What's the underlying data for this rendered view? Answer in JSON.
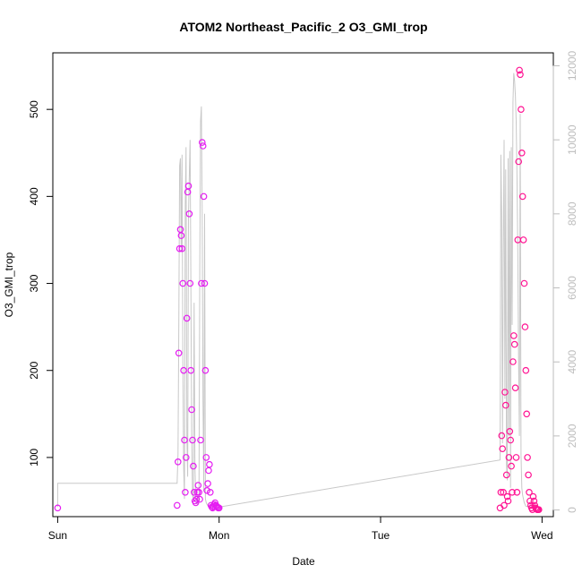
{
  "chart_data": {
    "type": "scatter",
    "title": "ATOM2 Northeast_Pacific_2 O3_GMI_trop",
    "xlabel": "Date",
    "ylabel": "O3_GMI_trop",
    "x_ticks": [
      "Sun",
      "Mon",
      "Tue",
      "Wed"
    ],
    "x_domain_days": [
      -0.03,
      3.07
    ],
    "ylim": [
      32,
      565
    ],
    "y_ticks": [
      100,
      200,
      300,
      400,
      500
    ],
    "y2lim": [
      -180,
      12350
    ],
    "y2_ticks": [
      0,
      2000,
      4000,
      6000,
      8000,
      10000,
      12000
    ],
    "grid": false,
    "legend": "none",
    "colors": {
      "flight1_points": "#e51cf2",
      "flight2_points": "#ff1493",
      "secondary_line": "#c8c8c8"
    },
    "series": [
      {
        "axis": "left",
        "style": "points",
        "color_key": "flight1_points",
        "x": [
          0.0,
          0.74,
          0.745,
          0.75,
          0.755,
          0.76,
          0.765,
          0.77,
          0.775,
          0.78,
          0.785,
          0.79,
          0.795,
          0.8,
          0.805,
          0.81,
          0.815,
          0.82,
          0.825,
          0.83,
          0.835,
          0.84,
          0.845,
          0.85,
          0.855,
          0.86,
          0.865,
          0.87,
          0.875,
          0.88,
          0.885,
          0.89,
          0.895,
          0.9,
          0.905,
          0.91,
          0.915,
          0.92,
          0.925,
          0.93,
          0.935,
          0.94,
          0.945,
          0.95,
          0.955,
          0.96,
          0.965,
          0.97,
          0.975,
          0.98,
          0.985,
          0.99,
          0.995,
          1.0
        ],
        "y": [
          42,
          45,
          95,
          220,
          340,
          362,
          355,
          340,
          300,
          200,
          120,
          60,
          100,
          260,
          405,
          412,
          380,
          300,
          200,
          155,
          120,
          90,
          60,
          50,
          48,
          52,
          60,
          68,
          60,
          52,
          120,
          300,
          462,
          458,
          400,
          300,
          200,
          100,
          62,
          70,
          85,
          92,
          60,
          45,
          43,
          42,
          44,
          46,
          48,
          45,
          44,
          43,
          42,
          42
        ]
      },
      {
        "axis": "left",
        "style": "points",
        "color_key": "flight2_points",
        "x": [
          2.74,
          2.745,
          2.75,
          2.755,
          2.76,
          2.765,
          2.77,
          2.775,
          2.78,
          2.785,
          2.79,
          2.795,
          2.8,
          2.805,
          2.81,
          2.815,
          2.82,
          2.825,
          2.83,
          2.835,
          2.84,
          2.845,
          2.85,
          2.855,
          2.86,
          2.865,
          2.87,
          2.875,
          2.88,
          2.885,
          2.89,
          2.895,
          2.9,
          2.905,
          2.91,
          2.915,
          2.92,
          2.925,
          2.93,
          2.935,
          2.94,
          2.945,
          2.95,
          2.955,
          2.96,
          2.965,
          2.97,
          2.975,
          2.98
        ],
        "y": [
          42,
          60,
          125,
          110,
          60,
          45,
          175,
          160,
          80,
          55,
          50,
          100,
          130,
          120,
          90,
          60,
          210,
          240,
          230,
          180,
          100,
          60,
          350,
          440,
          545,
          540,
          500,
          450,
          400,
          350,
          300,
          250,
          200,
          150,
          100,
          80,
          60,
          50,
          45,
          42,
          40,
          55,
          50,
          45,
          42,
          41,
          40,
          40,
          40
        ]
      },
      {
        "axis": "right",
        "style": "line",
        "color_key": "secondary_line",
        "x": [
          0.0,
          0.0,
          0.74,
          0.745,
          0.75,
          0.755,
          0.76,
          0.765,
          0.77,
          0.775,
          0.78,
          0.785,
          0.79,
          0.795,
          0.8,
          0.805,
          0.81,
          0.815,
          0.82,
          0.825,
          0.83,
          0.835,
          0.84,
          0.845,
          0.85,
          0.855,
          0.86,
          0.865,
          0.87,
          0.875,
          0.88,
          0.885,
          0.89,
          0.895,
          0.9,
          0.905,
          0.91,
          0.915,
          0.92,
          0.925,
          0.93,
          0.935,
          0.94,
          0.945,
          0.95,
          0.955,
          0.96,
          0.965,
          0.97,
          0.975,
          0.98,
          0.985,
          0.99,
          0.995,
          1.0,
          1.0,
          2.74,
          2.745,
          2.75,
          2.755,
          2.76,
          2.765,
          2.77,
          2.775,
          2.78,
          2.785,
          2.79,
          2.795,
          2.8,
          2.805,
          2.81,
          2.815,
          2.82,
          2.825,
          2.83,
          2.835,
          2.84,
          2.845,
          2.85,
          2.855,
          2.86,
          2.865,
          2.87,
          2.875,
          2.88,
          2.885,
          2.89,
          2.895,
          2.9,
          2.905,
          2.91,
          2.915,
          2.92,
          2.925,
          2.93,
          2.935,
          2.94,
          2.945,
          2.95,
          2.955,
          2.96,
          2.965,
          2.97,
          2.975,
          2.98
        ],
        "y": [
          80,
          720,
          720,
          1500,
          5000,
          9300,
          9500,
          7000,
          9600,
          4000,
          1200,
          300,
          8200,
          9800,
          2000,
          900,
          8000,
          9000,
          10000,
          6000,
          2000,
          400,
          300,
          5600,
          1200,
          300,
          200,
          150,
          400,
          200,
          6500,
          10500,
          10900,
          8000,
          3000,
          500,
          8000,
          300,
          200,
          150,
          120,
          100,
          100,
          90,
          80,
          80,
          80,
          90,
          100,
          90,
          80,
          80,
          80,
          80,
          80,
          80,
          1350,
          9600,
          8000,
          1800,
          7000,
          10000,
          3000,
          9200,
          1200,
          800,
          9500,
          2000,
          9700,
          600,
          9800,
          5000,
          11000,
          11800,
          11600,
          11200,
          10500,
          9000,
          7000,
          4000,
          2000,
          10700,
          1500,
          600,
          400,
          300,
          200,
          150,
          100,
          100,
          90,
          80,
          80,
          80,
          80,
          80,
          80,
          80,
          80,
          80,
          80,
          80,
          80,
          80,
          80
        ]
      }
    ]
  }
}
